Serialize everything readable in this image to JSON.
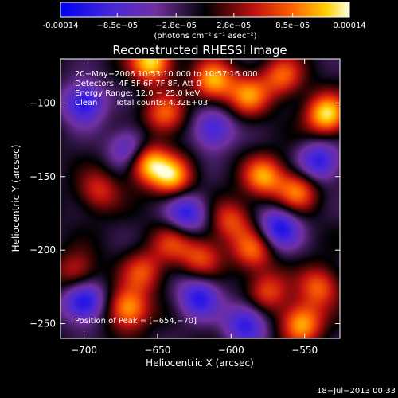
{
  "chart_data": {
    "type": "heatmap",
    "title": "Reconstructed RHESSI Image",
    "xlabel": "Heliocentric X (arcsec)",
    "ylabel": "Heliocentric Y (arcsec)",
    "xlim": [
      -716,
      -526
    ],
    "ylim": [
      -260,
      -70
    ],
    "xticks": [
      -700,
      -650,
      -600,
      -550
    ],
    "yticks": [
      -250,
      -200,
      -150,
      -100
    ],
    "colorscale": "rhessi-blue-purple-black-red-yellow-white",
    "colorbar": {
      "range": [
        -0.00014,
        0.00014
      ],
      "tick_values": [
        -0.00014,
        -8.5e-05,
        -2.8e-05,
        2.8e-05,
        8.5e-05,
        0.00014
      ],
      "tick_labels": [
        "-0.00014",
        "−8.5e−05",
        "−2.8e−05",
        "2.8e−05",
        "8.5e−05",
        "0.00014"
      ],
      "unit_label": "(photons cm⁻² s⁻¹ asec⁻²)"
    },
    "sources": [
      {
        "x": -658,
        "y": -140,
        "value": 0.00014
      },
      {
        "x": -640,
        "y": -150,
        "value": 0.00012
      },
      {
        "x": -654,
        "y": -72,
        "value": 0.00014
      },
      {
        "x": -612,
        "y": -85,
        "value": 0.00012
      },
      {
        "x": -535,
        "y": -108,
        "value": 0.00014
      },
      {
        "x": -588,
        "y": -95,
        "value": 0.0001
      },
      {
        "x": -565,
        "y": -82,
        "value": 9e-05
      },
      {
        "x": -578,
        "y": -150,
        "value": 0.00011
      },
      {
        "x": -555,
        "y": -160,
        "value": 0.0001
      },
      {
        "x": -600,
        "y": -180,
        "value": 8e-05
      },
      {
        "x": -585,
        "y": -200,
        "value": 9e-05
      },
      {
        "x": -620,
        "y": -205,
        "value": 8e-05
      },
      {
        "x": -670,
        "y": -240,
        "value": 0.00012
      },
      {
        "x": -660,
        "y": -215,
        "value": 8e-05
      },
      {
        "x": -640,
        "y": -195,
        "value": 7e-05
      },
      {
        "x": -552,
        "y": -250,
        "value": 0.00012
      },
      {
        "x": -575,
        "y": -228,
        "value": 8e-05
      },
      {
        "x": -540,
        "y": -225,
        "value": 9e-05
      },
      {
        "x": -645,
        "y": -108,
        "value": 9e-05
      },
      {
        "x": -690,
        "y": -160,
        "value": 7e-05
      },
      {
        "x": -705,
        "y": -215,
        "value": 7e-05
      },
      {
        "x": -700,
        "y": -100,
        "value": -0.00011
      },
      {
        "x": -668,
        "y": -132,
        "value": -0.0001
      },
      {
        "x": -630,
        "y": -175,
        "value": -0.0001
      },
      {
        "x": -700,
        "y": -235,
        "value": -0.00012
      },
      {
        "x": -622,
        "y": -232,
        "value": -0.0001
      },
      {
        "x": -567,
        "y": -185,
        "value": -0.00011
      },
      {
        "x": -590,
        "y": -250,
        "value": -0.0001
      },
      {
        "x": -540,
        "y": -140,
        "value": -0.0001
      },
      {
        "x": -612,
        "y": -118,
        "value": -9e-05
      }
    ]
  },
  "annotations": {
    "time_range": "20−May−2006 10:53:10.000 to 10:57:16.000",
    "detectors": "Detectors: 4F 5F 6F 7F 8F, Att 0",
    "energy": "Energy Range: 12.0 − 25.0 keV",
    "method": "Clean",
    "total_counts": "Total counts: 4.32E+03",
    "peak": "Position of Peak = [−654,−70]"
  },
  "timestamp": "18−Jul−2013 00:33"
}
